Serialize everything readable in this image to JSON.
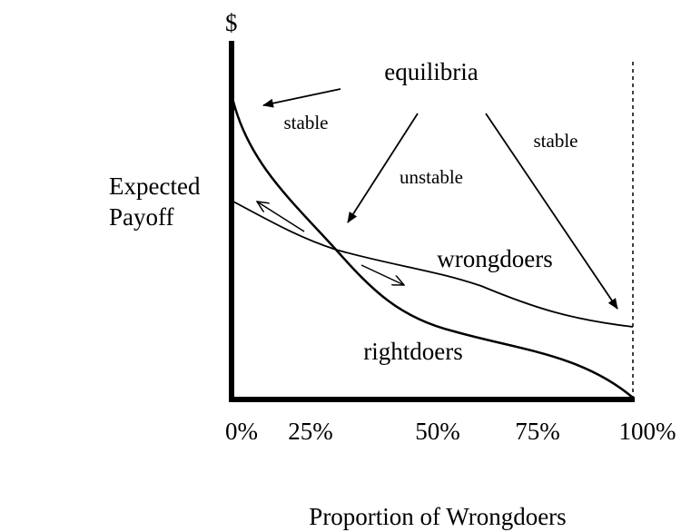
{
  "y_axis_symbol": "$",
  "y_axis_label": [
    "Expected",
    "Payoff"
  ],
  "x_axis_label": "Proportion of Wrongdoers",
  "x_ticks": [
    "0%",
    "25%",
    "50%",
    "75%",
    "100%"
  ],
  "annotations": {
    "equilibria": "equilibria",
    "stable_left": "stable",
    "unstable": "unstable",
    "stable_right": "stable"
  },
  "curves": {
    "wrongdoers": "wrongdoers",
    "rightdoers": "rightdoers"
  }
}
